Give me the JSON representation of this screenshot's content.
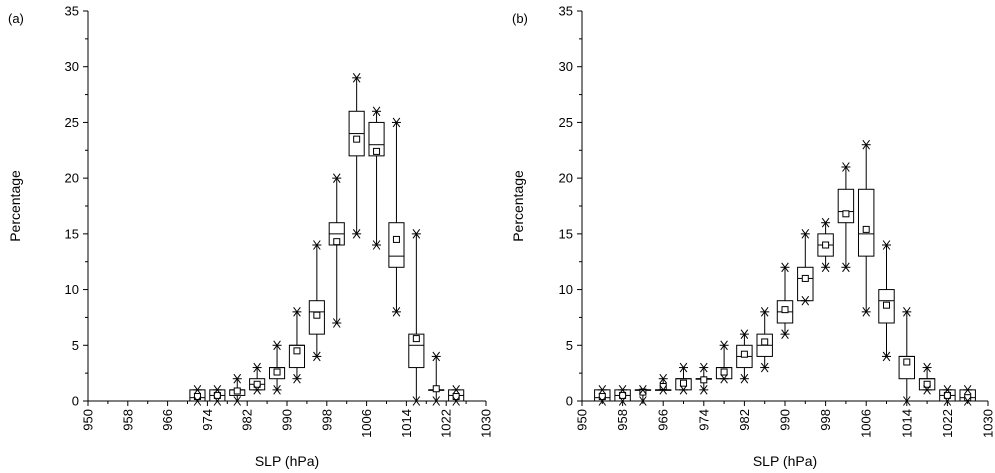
{
  "chart_data": [
    {
      "type": "boxplot",
      "panel_label": "(a)",
      "xlabel": "SLP (hPa)",
      "ylabel": "Percentage",
      "xlim": [
        950,
        1030
      ],
      "ylim": [
        0,
        35
      ],
      "xticks": [
        950,
        958,
        966,
        974,
        982,
        990,
        998,
        1006,
        1014,
        1022,
        1030
      ],
      "yticks": [
        0,
        5,
        10,
        15,
        20,
        25,
        30,
        35
      ],
      "boxes": [
        {
          "x": 972,
          "min": 0,
          "q1": 0,
          "median": 0.3,
          "q3": 1,
          "max": 1,
          "mean": 0.4
        },
        {
          "x": 976,
          "min": 0,
          "q1": 0,
          "median": 0.5,
          "q3": 1,
          "max": 1,
          "mean": 0.5
        },
        {
          "x": 980,
          "min": 0,
          "q1": 0.5,
          "median": 1,
          "q3": 1,
          "max": 2,
          "mean": 0.9
        },
        {
          "x": 984,
          "min": 1,
          "q1": 1,
          "median": 1.5,
          "q3": 2,
          "max": 3,
          "mean": 1.5
        },
        {
          "x": 988,
          "min": 1,
          "q1": 2,
          "median": 3,
          "q3": 3,
          "max": 5,
          "mean": 2.6
        },
        {
          "x": 992,
          "min": 2,
          "q1": 3,
          "median": 5,
          "q3": 5,
          "max": 8,
          "mean": 4.5
        },
        {
          "x": 996,
          "min": 4,
          "q1": 6,
          "median": 8,
          "q3": 9,
          "max": 14,
          "mean": 7.7
        },
        {
          "x": 1000,
          "min": 7,
          "q1": 14,
          "median": 15,
          "q3": 16,
          "max": 20,
          "mean": 14.3
        },
        {
          "x": 1004,
          "min": 15,
          "q1": 22,
          "median": 24,
          "q3": 26,
          "max": 29,
          "mean": 23.5
        },
        {
          "x": 1008,
          "min": 14,
          "q1": 22,
          "median": 23,
          "q3": 25,
          "max": 26,
          "mean": 22.4
        },
        {
          "x": 1012,
          "min": 8,
          "q1": 12,
          "median": 13,
          "q3": 16,
          "max": 25,
          "mean": 14.5
        },
        {
          "x": 1016,
          "min": 0,
          "q1": 3,
          "median": 5,
          "q3": 6,
          "max": 15,
          "mean": 5.6
        },
        {
          "x": 1020,
          "min": 0,
          "q1": 1,
          "median": 1,
          "q3": 1,
          "max": 4,
          "mean": 1.1
        },
        {
          "x": 1024,
          "min": 0,
          "q1": 0,
          "median": 0.5,
          "q3": 1,
          "max": 1,
          "mean": 0.4
        }
      ]
    },
    {
      "type": "boxplot",
      "panel_label": "(b)",
      "xlabel": "SLP (hPa)",
      "ylabel": "Percentage",
      "xlim": [
        950,
        1030
      ],
      "ylim": [
        0,
        35
      ],
      "xticks": [
        950,
        958,
        966,
        974,
        982,
        990,
        998,
        1006,
        1014,
        1022,
        1030
      ],
      "yticks": [
        0,
        5,
        10,
        15,
        20,
        25,
        30,
        35
      ],
      "boxes": [
        {
          "x": 954,
          "min": 0,
          "q1": 0,
          "median": 0.3,
          "q3": 1,
          "max": 1,
          "mean": 0.4
        },
        {
          "x": 958,
          "min": 0,
          "q1": 0,
          "median": 0.5,
          "q3": 1,
          "max": 1,
          "mean": 0.5
        },
        {
          "x": 962,
          "min": 0,
          "q1": 1,
          "median": 1,
          "q3": 1,
          "max": 1,
          "mean": 0.8
        },
        {
          "x": 966,
          "min": 1,
          "q1": 1,
          "median": 1,
          "q3": 1,
          "max": 2,
          "mean": 1.3
        },
        {
          "x": 970,
          "min": 1,
          "q1": 1,
          "median": 2,
          "q3": 2,
          "max": 3,
          "mean": 1.6
        },
        {
          "x": 974,
          "min": 1,
          "q1": 2,
          "median": 2,
          "q3": 2,
          "max": 3,
          "mean": 1.9
        },
        {
          "x": 978,
          "min": 2,
          "q1": 2,
          "median": 3,
          "q3": 3,
          "max": 5,
          "mean": 2.6
        },
        {
          "x": 982,
          "min": 2,
          "q1": 3,
          "median": 4,
          "q3": 5,
          "max": 6,
          "mean": 4.2
        },
        {
          "x": 986,
          "min": 3,
          "q1": 4,
          "median": 5,
          "q3": 6,
          "max": 8,
          "mean": 5.3
        },
        {
          "x": 990,
          "min": 6,
          "q1": 7,
          "median": 8,
          "q3": 9,
          "max": 12,
          "mean": 8.2
        },
        {
          "x": 994,
          "min": 9,
          "q1": 9,
          "median": 11,
          "q3": 12,
          "max": 15,
          "mean": 11.0
        },
        {
          "x": 998,
          "min": 12,
          "q1": 13,
          "median": 14,
          "q3": 15,
          "max": 16,
          "mean": 14.0
        },
        {
          "x": 1002,
          "min": 12,
          "q1": 16,
          "median": 17,
          "q3": 19,
          "max": 21,
          "mean": 16.8
        },
        {
          "x": 1006,
          "min": 8,
          "q1": 13,
          "median": 15,
          "q3": 19,
          "max": 23,
          "mean": 15.4
        },
        {
          "x": 1010,
          "min": 4,
          "q1": 7,
          "median": 9,
          "q3": 10,
          "max": 14,
          "mean": 8.6
        },
        {
          "x": 1014,
          "min": 0,
          "q1": 2,
          "median": 4,
          "q3": 4,
          "max": 8,
          "mean": 3.5
        },
        {
          "x": 1018,
          "min": 1,
          "q1": 1,
          "median": 2,
          "q3": 2,
          "max": 3,
          "mean": 1.5
        },
        {
          "x": 1022,
          "min": 0,
          "q1": 0,
          "median": 0.5,
          "q3": 1,
          "max": 1,
          "mean": 0.5
        },
        {
          "x": 1026,
          "min": 0,
          "q1": 0,
          "median": 0.3,
          "q3": 1,
          "max": 1,
          "mean": 0.3
        }
      ]
    }
  ]
}
